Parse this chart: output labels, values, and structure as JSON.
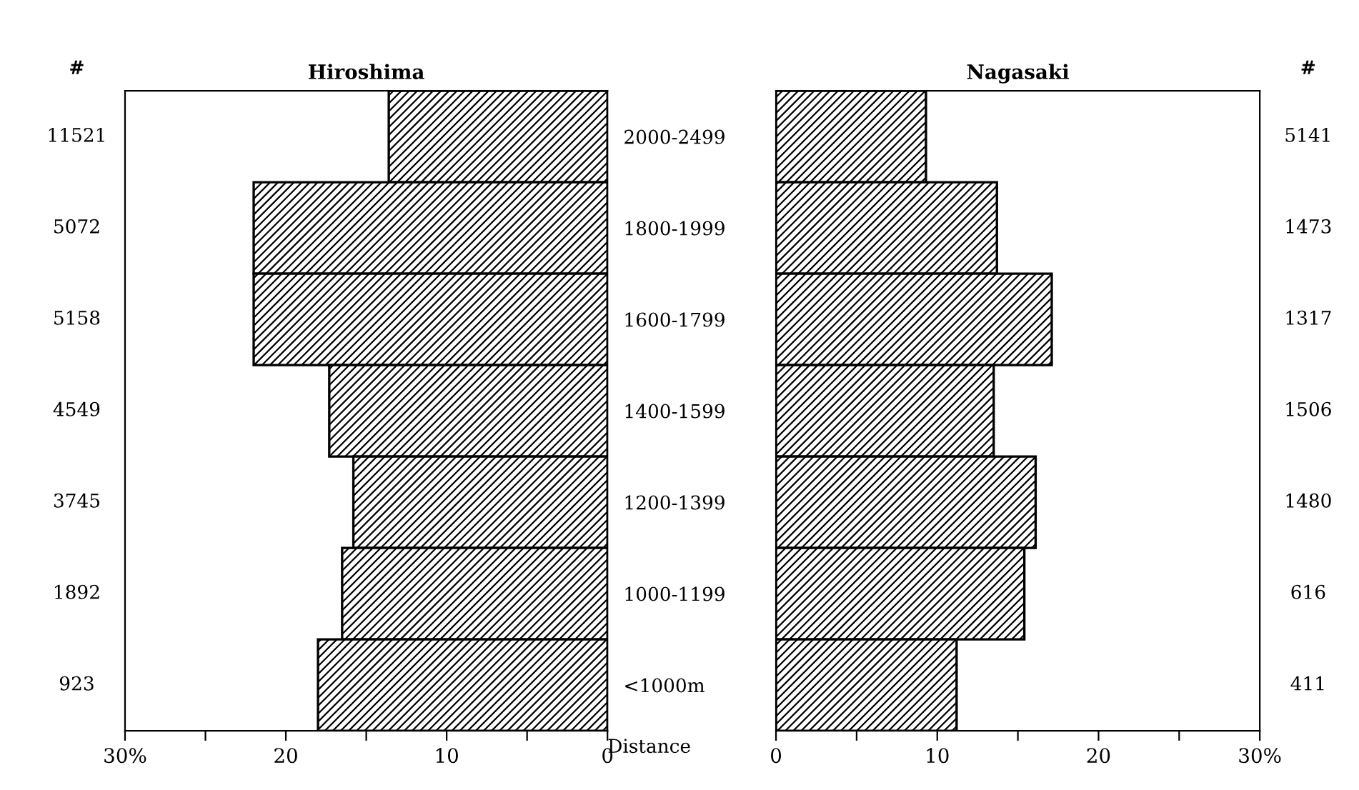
{
  "chart_data": [
    {
      "type": "bar",
      "orientation": "horizontal",
      "title": "Hiroshima",
      "ylabel": "Distance",
      "categories": [
        "2000-2499",
        "1800-1999",
        "1600-1799",
        "1400-1599",
        "1200-1399",
        "1000-1199",
        "<1000m"
      ],
      "series": [
        {
          "color": "#000000",
          "values": [
            13.6,
            22.0,
            22.0,
            17.3,
            15.8,
            16.5,
            18.0
          ]
        }
      ],
      "xlim": [
        30,
        0
      ],
      "xticks": [
        {
          "value": 30,
          "label": "30%"
        },
        {
          "value": 25,
          "label": null
        },
        20,
        {
          "value": 15,
          "label": null
        },
        10,
        {
          "value": 5,
          "label": null
        },
        0
      ],
      "annotations": [
        "#",
        "11521",
        "5072",
        "5158",
        "4549",
        "3745",
        "1892",
        "923"
      ]
    },
    {
      "type": "bar",
      "orientation": "horizontal",
      "title": "Nagasaki",
      "tick_labels": "x",
      "categories": [
        null,
        null,
        null,
        null,
        null,
        null,
        null
      ],
      "series": [
        {
          "color": "#000000",
          "values": [
            9.3,
            13.7,
            17.1,
            13.5,
            16.1,
            15.4,
            11.2
          ]
        }
      ],
      "xlim": [
        0,
        30
      ],
      "xticks": [
        0,
        {
          "value": 5,
          "label": null
        },
        10,
        {
          "value": 15,
          "label": null
        },
        20,
        {
          "value": 25,
          "label": null
        },
        {
          "value": 30,
          "label": "30%"
        }
      ],
      "annotations": [
        "#",
        "5141",
        "1473",
        "1317",
        "1506",
        "1480",
        "616",
        "411"
      ]
    }
  ]
}
